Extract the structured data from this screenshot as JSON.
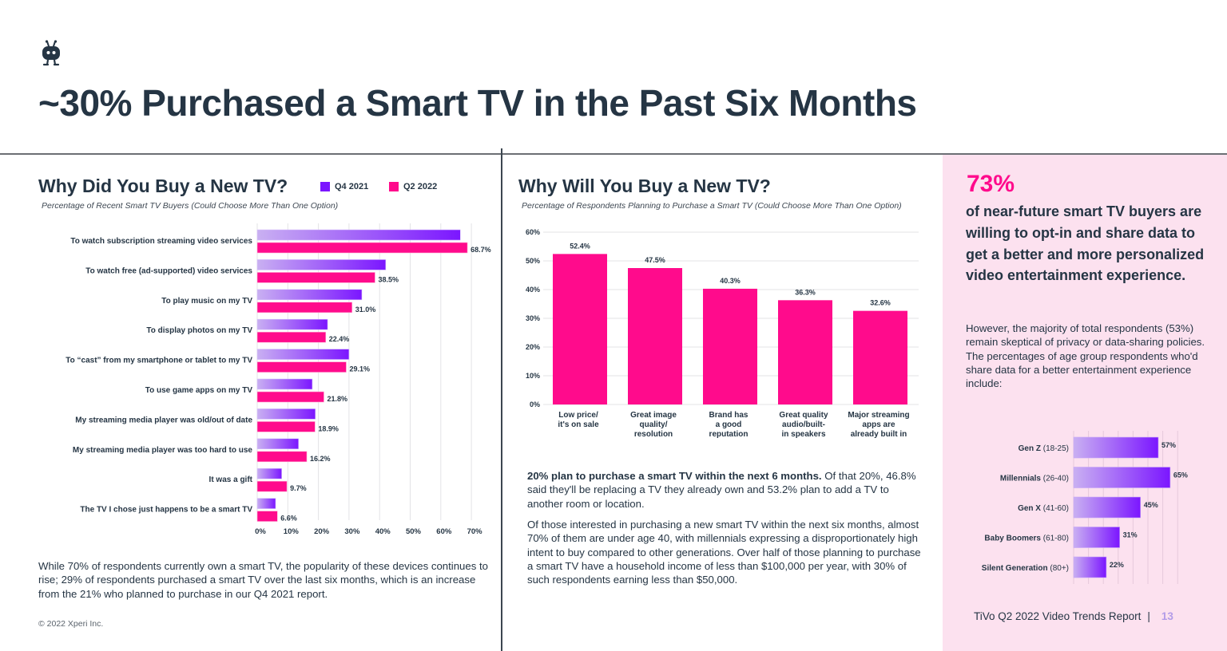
{
  "header": {
    "logo_icon": "tivo-robot-icon",
    "title": "~30% Purchased a Smart TV in the Past Six Months"
  },
  "left": {
    "title": "Why Did You Buy a New TV?",
    "subtitle": "Percentage of Recent Smart TV Buyers (Could Choose More Than One Option)",
    "legend": [
      {
        "label": "Q4 2021",
        "color": "#7b16ff"
      },
      {
        "label": "Q2 2022",
        "color": "#ff0b8c"
      }
    ],
    "body": "While 70% of respondents currently own a smart TV, the popularity of these devices continues to rise; 29% of respondents purchased a smart TV over the last six months, which is an increase from the 21% who planned to purchase in our Q4 2021 report.",
    "copyright": "© 2022 Xperi Inc."
  },
  "middle": {
    "title": "Why Will You Buy a New TV?",
    "subtitle": "Percentage of Respondents Planning to Purchase a Smart TV (Could Choose More Than One Option)",
    "body1_bold": "20% plan to purchase a smart TV within the next 6 months.",
    "body1_rest": " Of that 20%, 46.8% said they'll be replacing a TV they already own and 53.2% plan to add a TV to another room or location.",
    "body2": "Of those interested in purchasing a new smart TV within the next six months, almost 70% of them are under age 40, with millennials expressing a disproportionately high intent to buy compared to other generations. Over half of those planning to purchase a smart TV have a household income of less than $100,000 per year, with 30% of such respondents earning less than $50,000."
  },
  "right": {
    "big_stat": "73%",
    "stat_desc": "of near-future smart TV buyers are willing to opt-in and share data to get a better and more personalized video entertainment experience.",
    "body": "However, the majority of total respondents (53%) remain skeptical of privacy or data-sharing policies. The percentages of age group respondents who'd share data for a better entertainment experience include:",
    "footer_report": "TiVo Q2 2022 Video Trends Report",
    "footer_sep": "|",
    "page_number": "13"
  },
  "chart_data": [
    {
      "type": "bar",
      "orientation": "horizontal",
      "title": "Why Did You Buy a New TV?",
      "subtitle": "Percentage of Recent Smart TV Buyers (Could Choose More Than One Option)",
      "categories": [
        "To watch subscription streaming video services",
        "To watch free (ad-supported) video services",
        "To play music on my TV",
        "To display photos on my TV",
        "To “cast” from my smartphone or tablet to my TV",
        "To use game apps on my TV",
        "My streaming media player was old/out of date",
        "My streaming media player was too hard to use",
        "It was a gift",
        "The TV I chose just happens to be a smart TV"
      ],
      "series": [
        {
          "name": "Q4 2021",
          "color": "#7b16ff",
          "values": [
            66.4,
            42.0,
            34.2,
            23.0,
            30.0,
            18.0,
            19.0,
            13.5,
            8.0,
            6.0
          ]
        },
        {
          "name": "Q2 2022",
          "color": "#ff0b8c",
          "values": [
            68.7,
            38.5,
            31.0,
            22.4,
            29.1,
            21.8,
            18.9,
            16.2,
            9.7,
            6.6
          ],
          "labels": [
            "68.7%",
            "38.5%",
            "31.0%",
            "22.4%",
            "29.1%",
            "21.8%",
            "18.9%",
            "16.2%",
            "9.7%",
            "6.6%"
          ]
        }
      ],
      "xlim": [
        0,
        70
      ],
      "xticks": [
        "0%",
        "10%",
        "20%",
        "30%",
        "40%",
        "50%",
        "60%",
        "70%"
      ],
      "grid": true,
      "legend": "top-right"
    },
    {
      "type": "bar",
      "orientation": "vertical",
      "title": "Why Will You Buy a New TV?",
      "subtitle": "Percentage of Respondents Planning to Purchase a Smart TV (Could Choose More Than One Option)",
      "categories": [
        [
          "Low price/",
          "it's on sale"
        ],
        [
          "Great image",
          "quality/",
          "resolution"
        ],
        [
          "Brand has",
          "a good",
          "reputation"
        ],
        [
          "Great quality",
          "audio/built-",
          "in speakers"
        ],
        [
          "Major streaming",
          "apps are",
          "already built in"
        ]
      ],
      "values": [
        52.4,
        47.5,
        40.3,
        36.3,
        32.6
      ],
      "labels": [
        "52.4%",
        "47.5%",
        "40.3%",
        "36.3%",
        "32.6%"
      ],
      "color": "#ff0b8c",
      "ylim": [
        0,
        60
      ],
      "yticks": [
        "0%",
        "10%",
        "20%",
        "30%",
        "40%",
        "50%",
        "60%"
      ],
      "grid": true
    },
    {
      "type": "bar",
      "orientation": "horizontal",
      "title": "",
      "categories": [
        {
          "name": "Gen Z",
          "range": " (18-25)"
        },
        {
          "name": "Millennials",
          "range": " (26-40)"
        },
        {
          "name": "Gen X",
          "range": " (41-60)"
        },
        {
          "name": "Baby Boomers",
          "range": " (61-80)"
        },
        {
          "name": "Silent Generation",
          "range": " (80+)"
        }
      ],
      "values": [
        57,
        65,
        45,
        31,
        22
      ],
      "labels": [
        "57%",
        "65%",
        "45%",
        "31%",
        "22%"
      ],
      "color": "#7b16ff",
      "xlim": [
        0,
        70
      ],
      "grid": true
    }
  ]
}
